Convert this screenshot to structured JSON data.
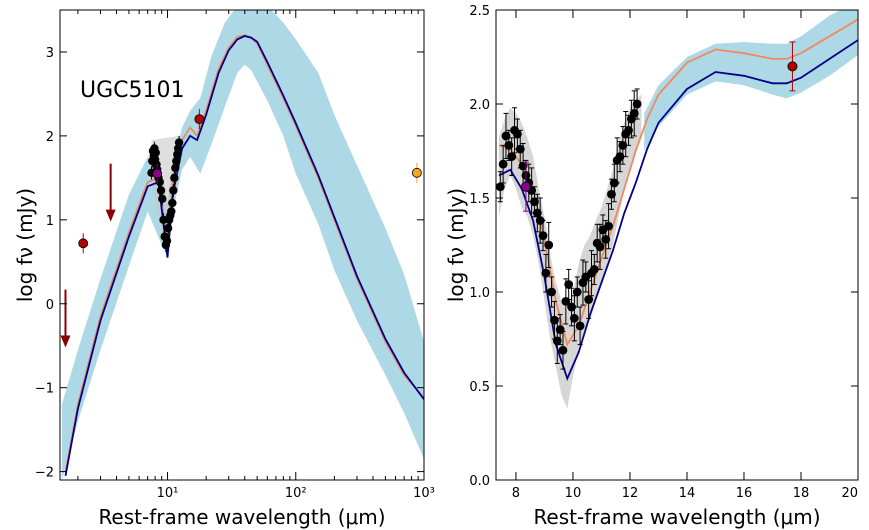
{
  "chart_data": [
    {
      "type": "line",
      "panel": "left",
      "annotation": "UGC5101",
      "xlabel": "Rest-frame wavelength (μm)",
      "ylabel": "log fν (mJy)",
      "xscale": "log",
      "xlim": [
        1.45,
        1000
      ],
      "ylim": [
        -2.1,
        3.5
      ],
      "x_ticklabels": [
        "10¹",
        "10²",
        "10³"
      ],
      "y_ticks": [
        -2,
        -1,
        0,
        1,
        2,
        3
      ],
      "colors": {
        "band": "#add8e6",
        "orange": "#f08a5d",
        "navy": "#00008b",
        "points": "#000000",
        "irs_band": "#c8c8c8",
        "upper_limit": "#8b0000",
        "red_point": "#b00000",
        "purple_point": "#8b008b",
        "orange_point": "#f5a623"
      },
      "band": {
        "x": [
          1.5,
          2,
          3,
          5,
          7,
          9,
          10,
          11,
          13,
          15,
          18,
          22,
          28,
          35,
          40,
          45,
          60,
          80,
          100,
          150,
          200,
          300,
          500,
          700,
          1000
        ],
        "lower": [
          -2.1,
          -1.4,
          -0.55,
          0.45,
          1.1,
          0.7,
          0.55,
          1.1,
          1.6,
          1.75,
          1.55,
          1.9,
          2.35,
          2.75,
          2.85,
          2.78,
          2.42,
          2.0,
          1.55,
          0.95,
          0.4,
          -0.2,
          -0.85,
          -1.3,
          -1.85
        ],
        "upper": [
          -1.2,
          -0.55,
          0.3,
          1.3,
          1.75,
          1.55,
          1.2,
          1.7,
          2.1,
          2.3,
          2.45,
          2.95,
          3.35,
          3.55,
          3.6,
          3.6,
          3.55,
          3.35,
          3.15,
          2.75,
          2.25,
          1.65,
          0.9,
          0.35,
          -0.45
        ]
      },
      "series": [
        {
          "color": "orange",
          "x": [
            1.6,
            2,
            3,
            5,
            7,
            8.5,
            10,
            11,
            13,
            15,
            17,
            20,
            25,
            30,
            35,
            40,
            45,
            50,
            60,
            80,
            100,
            150,
            200,
            300,
            500,
            700,
            1000
          ],
          "y": [
            -2.0,
            -1.2,
            -0.15,
            0.85,
            1.45,
            1.5,
            0.7,
            1.45,
            1.95,
            2.1,
            2.0,
            2.3,
            2.8,
            3.05,
            3.18,
            3.2,
            3.17,
            3.1,
            2.85,
            2.45,
            2.12,
            1.5,
            1.0,
            0.3,
            -0.45,
            -0.85,
            -1.12
          ]
        },
        {
          "color": "navy",
          "x": [
            1.6,
            2,
            3,
            5,
            7,
            8.5,
            10,
            11,
            13,
            15,
            17,
            20,
            25,
            30,
            35,
            40,
            45,
            50,
            60,
            80,
            100,
            150,
            200,
            300,
            500,
            700,
            1000
          ],
          "y": [
            -2.05,
            -1.25,
            -0.2,
            0.8,
            1.4,
            1.45,
            0.55,
            1.3,
            1.85,
            2.0,
            1.95,
            2.25,
            2.75,
            3.02,
            3.15,
            3.19,
            3.17,
            3.12,
            2.88,
            2.48,
            2.15,
            1.53,
            1.03,
            0.33,
            -0.42,
            -0.82,
            -1.14
          ]
        }
      ],
      "irs_points": {
        "x": [
          7.5,
          7.6,
          7.7,
          7.8,
          7.9,
          8.0,
          8.1,
          8.2,
          8.3,
          8.4,
          8.5,
          8.7,
          8.9,
          9.1,
          9.3,
          9.5,
          9.7,
          9.9,
          10.1,
          10.3,
          10.5,
          10.7,
          10.9,
          11.1,
          11.3,
          11.5,
          11.7,
          11.9,
          12.1,
          12.3
        ],
        "y": [
          1.56,
          1.7,
          1.82,
          1.76,
          1.85,
          1.72,
          1.8,
          1.66,
          1.6,
          1.55,
          1.5,
          1.45,
          1.35,
          1.25,
          1.0,
          0.8,
          0.7,
          0.75,
          0.9,
          1.0,
          1.05,
          1.1,
          1.2,
          1.35,
          1.5,
          1.62,
          1.7,
          1.78,
          1.85,
          1.92
        ]
      },
      "photometry": [
        {
          "x": 2.2,
          "y": 0.72,
          "color": "red_point"
        },
        {
          "x": 8.3,
          "y": 1.55,
          "color": "purple_point"
        },
        {
          "x": 17.7,
          "y": 2.2,
          "color": "red_point"
        },
        {
          "x": 880,
          "y": 1.56,
          "color": "orange_point"
        }
      ],
      "upper_limits": [
        {
          "x": 3.6,
          "y": 1.55
        },
        {
          "x": 1.6,
          "y": 0.05
        }
      ]
    },
    {
      "type": "line",
      "panel": "right",
      "xlabel": "Rest-frame wavelength (μm)",
      "ylabel": "log fν (mJy)",
      "xlim": [
        7.3,
        20
      ],
      "ylim": [
        0.0,
        2.5
      ],
      "x_ticks": [
        8,
        10,
        12,
        14,
        16,
        18,
        20
      ],
      "y_ticks": [
        "0.0",
        "0.5",
        "1.0",
        "1.5",
        "2.0",
        "2.5"
      ],
      "colors": {
        "band": "#add8e6",
        "orange": "#f08a5d",
        "navy": "#00008b",
        "points": "#000000",
        "irs_band": "#c8c8c8",
        "red_point": "#b00000",
        "purple_point": "#8b008b"
      },
      "band": {
        "x": [
          12.5,
          13,
          14,
          15,
          16,
          17,
          17.5,
          18,
          19,
          20
        ],
        "lower": [
          1.75,
          1.88,
          2.05,
          2.12,
          2.1,
          2.05,
          2.03,
          2.06,
          2.15,
          2.26
        ],
        "upper": [
          1.95,
          2.1,
          2.25,
          2.32,
          2.33,
          2.32,
          2.32,
          2.36,
          2.47,
          2.55
        ]
      },
      "irs_band": {
        "x": [
          7.4,
          7.6,
          7.8,
          8.0,
          8.2,
          8.4,
          8.6,
          8.8,
          9.0,
          9.2,
          9.4,
          9.6,
          9.8,
          10.0,
          10.2,
          10.4,
          10.6,
          10.8,
          11.0,
          11.2,
          11.4,
          11.6,
          11.8,
          12.0,
          12.2,
          12.4
        ],
        "lower": [
          1.4,
          1.55,
          1.62,
          1.55,
          1.45,
          1.4,
          1.3,
          1.15,
          0.95,
          0.75,
          0.6,
          0.45,
          0.38,
          0.55,
          0.7,
          0.8,
          0.85,
          0.95,
          1.05,
          1.15,
          1.25,
          1.4,
          1.55,
          1.65,
          1.75,
          1.82
        ],
        "upper": [
          1.82,
          1.92,
          1.98,
          1.95,
          1.9,
          1.82,
          1.72,
          1.55,
          1.4,
          1.2,
          1.05,
          0.95,
          0.9,
          1.0,
          1.15,
          1.25,
          1.3,
          1.38,
          1.45,
          1.55,
          1.65,
          1.8,
          1.9,
          1.98,
          2.02,
          2.05
        ]
      },
      "series": [
        {
          "color": "orange",
          "x": [
            7.4,
            7.8,
            8.2,
            8.6,
            9.0,
            9.4,
            9.8,
            10.2,
            10.6,
            11.0,
            11.4,
            11.8,
            12.2,
            12.6,
            13,
            14,
            15,
            16,
            17,
            17.5,
            18,
            19,
            20
          ],
          "y": [
            1.78,
            1.76,
            1.68,
            1.55,
            1.28,
            0.95,
            0.72,
            0.82,
            1.0,
            1.18,
            1.35,
            1.55,
            1.75,
            1.92,
            2.05,
            2.22,
            2.29,
            2.27,
            2.24,
            2.24,
            2.27,
            2.36,
            2.45
          ]
        },
        {
          "color": "navy",
          "x": [
            7.4,
            7.8,
            8.2,
            8.6,
            9.0,
            9.4,
            9.8,
            10.2,
            10.6,
            11.0,
            11.4,
            11.8,
            12.2,
            12.6,
            13,
            14,
            15,
            16,
            17,
            17.5,
            18,
            19,
            20
          ],
          "y": [
            1.62,
            1.65,
            1.55,
            1.38,
            1.08,
            0.72,
            0.54,
            0.68,
            0.88,
            1.05,
            1.22,
            1.42,
            1.58,
            1.76,
            1.9,
            2.08,
            2.17,
            2.15,
            2.11,
            2.11,
            2.14,
            2.24,
            2.34
          ]
        }
      ],
      "irs_points": {
        "x": [
          7.45,
          7.55,
          7.65,
          7.75,
          7.85,
          7.95,
          8.05,
          8.15,
          8.25,
          8.35,
          8.45,
          8.55,
          8.65,
          8.75,
          8.85,
          8.95,
          9.05,
          9.15,
          9.25,
          9.35,
          9.45,
          9.55,
          9.65,
          9.75,
          9.85,
          9.95,
          10.05,
          10.15,
          10.25,
          10.35,
          10.45,
          10.55,
          10.65,
          10.75,
          10.85,
          10.95,
          11.05,
          11.15,
          11.25,
          11.35,
          11.45,
          11.55,
          11.65,
          11.75,
          11.85,
          11.95,
          12.05,
          12.15,
          12.25
        ],
        "y": [
          1.56,
          1.68,
          1.83,
          1.78,
          1.72,
          1.86,
          1.84,
          1.76,
          1.67,
          1.62,
          1.58,
          1.54,
          1.48,
          1.42,
          1.38,
          1.3,
          1.1,
          1.25,
          1.0,
          0.85,
          0.74,
          0.8,
          0.69,
          0.95,
          1.04,
          0.92,
          0.86,
          1.0,
          0.82,
          1.05,
          1.08,
          0.96,
          1.1,
          1.12,
          1.26,
          1.24,
          1.33,
          1.28,
          1.35,
          1.52,
          1.58,
          1.7,
          1.72,
          1.78,
          1.84,
          1.86,
          1.92,
          1.95,
          2.0
        ]
      },
      "photometry": [
        {
          "x": 8.35,
          "y": 1.56,
          "color": "purple_point"
        },
        {
          "x": 17.7,
          "y": 2.2,
          "color": "red_point"
        }
      ]
    }
  ]
}
